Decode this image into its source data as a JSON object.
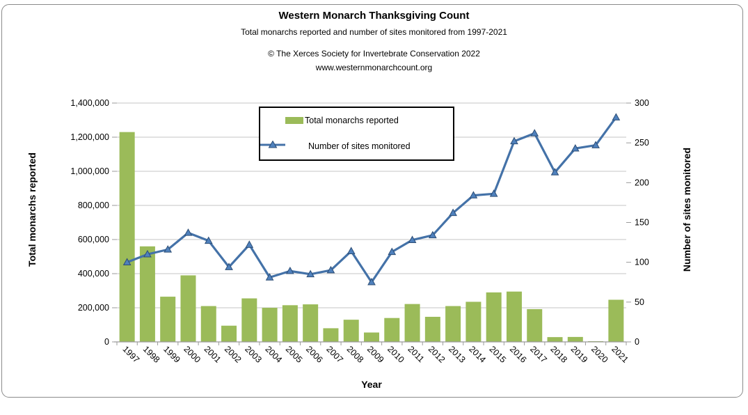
{
  "header": {
    "title": "Western Monarch Thanksgiving Count",
    "subtitle": "Total monarchs reported and number of sites monitored from 1997-2021",
    "attribution_line1": "© The Xerces Society for Invertebrate Conservation 2022",
    "attribution_line2": "www.westernmonarchcount.org"
  },
  "chart_data": {
    "type": "bar",
    "subtype": "combo-bar-line-dual-axis",
    "title": "Western Monarch Thanksgiving Count",
    "xlabel": "Year",
    "ylabel_left": "Total monarchs reported",
    "ylabel_right": "Number of sites monitored",
    "categories": [
      "1997",
      "1998",
      "1999",
      "2000",
      "2001",
      "2002",
      "2003",
      "2004",
      "2005",
      "2006",
      "2007",
      "2008",
      "2009",
      "2010",
      "2011",
      "2012",
      "2013",
      "2014",
      "2015",
      "2016",
      "2017",
      "2018",
      "2019",
      "2020",
      "2021"
    ],
    "series": [
      {
        "name": "Total monarchs reported",
        "type": "bar",
        "axis": "left",
        "color": "#9BBB59",
        "values": [
          1230000,
          560000,
          265000,
          390000,
          210000,
          95000,
          255000,
          200000,
          215000,
          220000,
          80000,
          130000,
          55000,
          140000,
          222000,
          147000,
          210000,
          235000,
          290000,
          295000,
          192000,
          28000,
          29000,
          2000,
          247000
        ]
      },
      {
        "name": "Number of sites monitored",
        "type": "line",
        "axis": "right",
        "color": "#4472A8",
        "marker": "triangle",
        "marker_fill": "#4F81BD",
        "marker_stroke": "#2C4D75",
        "values": [
          100,
          110,
          116,
          137,
          127,
          94,
          122,
          81,
          89,
          85,
          90,
          114,
          75,
          113,
          128,
          134,
          162,
          184,
          186,
          252,
          262,
          213,
          243,
          247,
          282
        ]
      }
    ],
    "ylim_left": [
      0,
      1400000
    ],
    "ylim_right": [
      0,
      300
    ],
    "y_left_tick_labels": [
      "0",
      "200,000",
      "400,000",
      "600,000",
      "800,000",
      "1,000,000",
      "1,200,000",
      "1,400,000"
    ],
    "y_right_tick_labels": [
      "0",
      "50",
      "100",
      "150",
      "200",
      "250",
      "300"
    ],
    "grid": true,
    "gridline_color": "#C6C6C6",
    "axis_line_color": "#9A9A9A",
    "legend_position": "inside-top-center"
  },
  "legend": {
    "item1_label": "Total monarchs reported",
    "item2_label": "Number of sites monitored"
  }
}
